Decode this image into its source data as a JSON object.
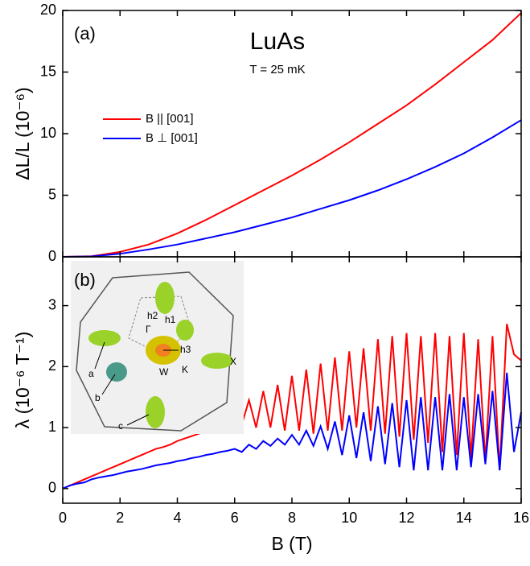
{
  "chart_data": [
    {
      "type": "line",
      "panel_label": "(a)",
      "title": "LuAs",
      "subtitle": "T = 25 mK",
      "ylabel": "ΔL/L (10⁻⁶)",
      "x": [
        0,
        1,
        2,
        3,
        4,
        5,
        6,
        7,
        8,
        9,
        10,
        11,
        12,
        13,
        14,
        15,
        16
      ],
      "series": [
        {
          "name": "B || [001]",
          "color": "#ff0000",
          "values": [
            0,
            0.05,
            0.4,
            1.0,
            1.9,
            3.0,
            4.2,
            5.4,
            6.6,
            7.9,
            9.3,
            10.8,
            12.3,
            14.0,
            15.8,
            17.6,
            19.8
          ]
        },
        {
          "name": "B ⊥ [001]",
          "color": "#0000ff",
          "values": [
            0,
            0.03,
            0.25,
            0.6,
            1.0,
            1.5,
            2.0,
            2.6,
            3.2,
            3.9,
            4.6,
            5.4,
            6.3,
            7.3,
            8.4,
            9.7,
            11.1
          ]
        }
      ],
      "xlim": [
        0,
        16
      ],
      "xticks": [
        0,
        2,
        4,
        6,
        8,
        10,
        12,
        14,
        16
      ],
      "ylim": [
        0,
        20
      ],
      "yticks": [
        0,
        5,
        10,
        15,
        20
      ]
    },
    {
      "type": "line",
      "panel_label": "(b)",
      "ylabel": "λ (10⁻⁶ T⁻¹)",
      "xlabel": "B (T)",
      "inset_labels": [
        "h2",
        "h1",
        "Γ",
        "h3",
        "W",
        "K",
        "X",
        "a",
        "b",
        "c"
      ],
      "x": [
        0,
        0.25,
        0.5,
        0.75,
        1,
        1.25,
        1.5,
        1.75,
        2,
        2.25,
        2.5,
        2.75,
        3,
        3.25,
        3.5,
        3.75,
        4,
        4.25,
        4.5,
        4.75,
        5,
        5.25,
        5.5,
        5.75,
        6,
        6.25,
        6.5,
        6.75,
        7,
        7.25,
        7.5,
        7.75,
        8,
        8.25,
        8.5,
        8.75,
        9,
        9.25,
        9.5,
        9.75,
        10,
        10.25,
        10.5,
        10.75,
        11,
        11.25,
        11.5,
        11.75,
        12,
        12.25,
        12.5,
        12.75,
        13,
        13.25,
        13.5,
        13.75,
        14,
        14.25,
        14.5,
        14.75,
        15,
        15.25,
        15.5,
        15.75,
        16
      ],
      "series": [
        {
          "name": "B || [001]",
          "color": "#ff0000",
          "values": [
            0,
            0.05,
            0.1,
            0.15,
            0.2,
            0.25,
            0.3,
            0.35,
            0.4,
            0.45,
            0.5,
            0.55,
            0.6,
            0.65,
            0.68,
            0.72,
            0.78,
            0.82,
            0.86,
            0.9,
            0.95,
            1.0,
            1.05,
            1.1,
            1.2,
            1.05,
            1.45,
            1.0,
            1.6,
            1.0,
            1.7,
            0.95,
            1.85,
            0.95,
            1.95,
            0.9,
            2.05,
            0.95,
            2.15,
            0.95,
            2.25,
            1.0,
            2.3,
            0.95,
            2.45,
            0.9,
            2.5,
            0.85,
            2.55,
            0.8,
            2.5,
            0.75,
            2.55,
            0.6,
            2.5,
            0.55,
            2.55,
            0.5,
            2.45,
            0.45,
            2.5,
            0.3,
            2.7,
            2.2,
            2.1
          ]
        },
        {
          "name": "B ⊥ [001]",
          "color": "#0000ff",
          "values": [
            0,
            0.05,
            0.08,
            0.1,
            0.15,
            0.18,
            0.2,
            0.22,
            0.25,
            0.28,
            0.3,
            0.32,
            0.35,
            0.38,
            0.4,
            0.42,
            0.45,
            0.47,
            0.5,
            0.52,
            0.55,
            0.57,
            0.6,
            0.62,
            0.65,
            0.6,
            0.72,
            0.65,
            0.78,
            0.7,
            0.82,
            0.72,
            0.88,
            0.72,
            0.95,
            0.7,
            1.02,
            0.65,
            1.1,
            0.55,
            1.2,
            0.5,
            1.25,
            0.45,
            1.35,
            0.4,
            1.4,
            0.35,
            1.45,
            0.3,
            1.5,
            0.3,
            1.5,
            0.3,
            1.55,
            0.3,
            1.5,
            0.35,
            1.55,
            0.4,
            1.6,
            0.3,
            1.9,
            0.6,
            1.25
          ]
        }
      ],
      "xlim": [
        0,
        16
      ],
      "xticks": [
        0,
        2,
        4,
        6,
        8,
        10,
        12,
        14,
        16
      ],
      "ylim": [
        -0.24,
        3.8
      ],
      "yticks": [
        0,
        1,
        2,
        3
      ]
    }
  ]
}
